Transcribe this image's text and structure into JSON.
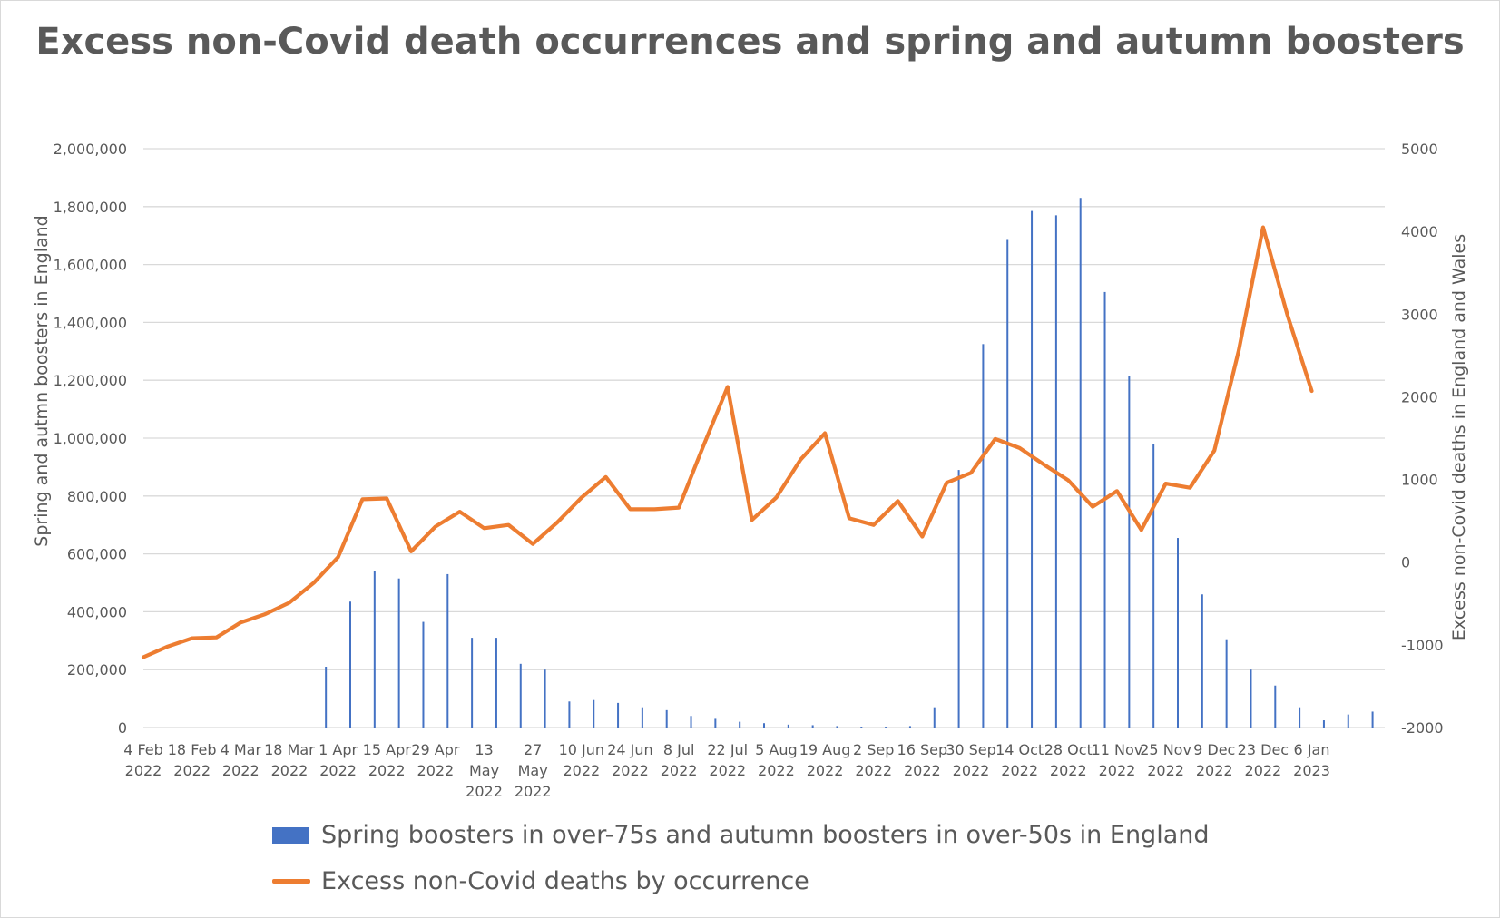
{
  "colors": {
    "bar": "#4472c4",
    "line": "#ed7d31",
    "grid": "#d9d9d9",
    "text": "#595959"
  },
  "chart_data": {
    "type": "bar+line",
    "title": "Excess non-Covid death occurrences and spring and autumn boosters",
    "ylabel": "Spring and autmn boosters in England",
    "y2label": "Excess non-Covid deaths in England and Wales",
    "ylim": [
      0,
      2000000
    ],
    "y2lim": [
      -2000,
      5000
    ],
    "y_ticks": [
      "0",
      "200,000",
      "400,000",
      "600,000",
      "800,000",
      "1,000,000",
      "1,200,000",
      "1,400,000",
      "1,600,000",
      "1,800,000",
      "2,000,000"
    ],
    "y2_ticks": [
      "-2000",
      "-1000",
      "0",
      "1000",
      "2000",
      "3000",
      "4000",
      "5000"
    ],
    "x_tick_labels": [
      [
        "4 Feb",
        "2022"
      ],
      [
        "18 Feb",
        "2022"
      ],
      [
        "4 Mar",
        "2022"
      ],
      [
        "18 Mar",
        "2022"
      ],
      [
        "1 Apr",
        "2022"
      ],
      [
        "15 Apr",
        "2022"
      ],
      [
        "29 Apr",
        "2022"
      ],
      [
        "13",
        "May",
        "2022"
      ],
      [
        "27",
        "May",
        "2022"
      ],
      [
        "10 Jun",
        "2022"
      ],
      [
        "24 Jun",
        "2022"
      ],
      [
        "8 Jul",
        "2022"
      ],
      [
        "22 Jul",
        "2022"
      ],
      [
        "5 Aug",
        "2022"
      ],
      [
        "19 Aug",
        "2022"
      ],
      [
        "2 Sep",
        "2022"
      ],
      [
        "16 Sep",
        "2022"
      ],
      [
        "30 Sep",
        "2022"
      ],
      [
        "14 Oct",
        "2022"
      ],
      [
        "28 Oct",
        "2022"
      ],
      [
        "11 Nov",
        "2022"
      ],
      [
        "25 Nov",
        "2022"
      ],
      [
        "9 Dec",
        "2022"
      ],
      [
        "23 Dec",
        "2022"
      ],
      [
        "6 Jan",
        "2023"
      ]
    ],
    "grid": true,
    "legend_position": "bottom",
    "series": [
      {
        "name": "Spring boosters in over-75s and autumn boosters in over-50s in England",
        "type": "bar",
        "axis": "left",
        "values": [
          0,
          0,
          0,
          0,
          0,
          0,
          0,
          210000,
          435000,
          540000,
          515000,
          365000,
          530000,
          310000,
          310000,
          220000,
          200000,
          90000,
          95000,
          85000,
          70000,
          60000,
          40000,
          30000,
          20000,
          15000,
          10000,
          8000,
          5000,
          3000,
          3000,
          5000,
          70000,
          890000,
          1325000,
          1685000,
          1785000,
          1770000,
          1830000,
          1505000,
          1215000,
          980000,
          655000,
          460000,
          305000,
          200000,
          145000,
          70000,
          25000,
          45000,
          55000
        ]
      },
      {
        "name": "Excess non-Covid deaths by occurrence",
        "type": "line",
        "axis": "right",
        "values": [
          -1150,
          -1020,
          -920,
          -910,
          -730,
          -630,
          -490,
          -250,
          60,
          760,
          770,
          130,
          430,
          610,
          410,
          450,
          220,
          480,
          780,
          1030,
          640,
          640,
          660,
          1400,
          2120,
          510,
          780,
          1240,
          1560,
          530,
          450,
          740,
          310,
          960,
          1080,
          1490,
          1380,
          1180,
          990,
          670,
          860,
          390,
          950,
          900,
          1350,
          2560,
          4050,
          2990,
          2070
        ]
      }
    ]
  }
}
